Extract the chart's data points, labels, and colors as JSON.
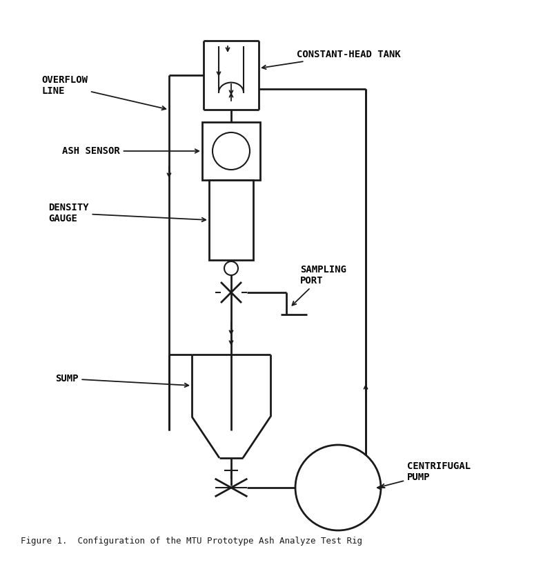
{
  "title": "Figure 1.  Configuration of the MTU Prototype Ash Analyze Test Rig",
  "bg_color": "#ffffff",
  "line_color": "#1a1a1a",
  "line_width": 2.0,
  "labels": {
    "constant_head_tank": "CONSTANT-HEAD TANK",
    "overflow_line": "OVERFLOW\nLINE",
    "ash_sensor": "ASH SENSOR",
    "density_gauge": "DENSITY\nGAUGE",
    "sampling_port": "SAMPLING\nPORT",
    "sump": "SUMP",
    "centrifugal_pump": "CENTRIFUGAL\nPUMP"
  },
  "font_size": 10,
  "caption_font_size": 9
}
